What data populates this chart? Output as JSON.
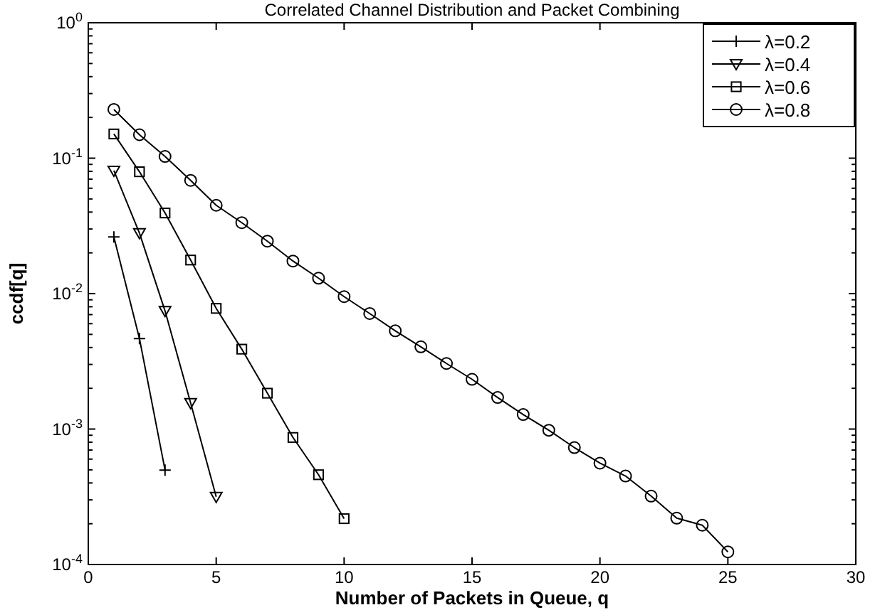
{
  "chart_data": {
    "type": "line",
    "title": "Correlated Channel Distribution and Packet Combining",
    "xlabel": "Number of Packets in Queue, q",
    "ylabel": "ccdf[q]",
    "log": "y",
    "xlim": [
      0,
      30
    ],
    "ylim": [
      0.0001,
      1
    ],
    "xticks": [
      0,
      5,
      10,
      15,
      20,
      25,
      30
    ],
    "yticks": [
      {
        "value": 1,
        "label": "10$^{0}$"
      },
      {
        "value": 0.1,
        "label": "10$^{-1}$"
      },
      {
        "value": 0.01,
        "label": "10$^{-2}$"
      },
      {
        "value": 0.001,
        "label": "10$^{-3}$"
      },
      {
        "value": 0.0001,
        "label": "10$^{-4}$"
      }
    ],
    "grid": false,
    "legend": "top right",
    "line_style": "solid",
    "series": [
      {
        "name": "λ=0.2",
        "color": "#000000",
        "marker": "cross",
        "x": [
          1,
          2,
          3
        ],
        "values": [
          0.0262,
          0.00466,
          0.000498
        ]
      },
      {
        "name": "λ=0.4",
        "color": "#000000",
        "marker": "triangle",
        "x": [
          1,
          2,
          3,
          4,
          5
        ],
        "values": [
          0.081,
          0.028,
          0.00745,
          0.00156,
          0.000316
        ]
      },
      {
        "name": "λ=0.6",
        "color": "#000000",
        "marker": "square",
        "x": [
          1,
          2,
          3,
          4,
          5,
          6,
          7,
          8,
          9,
          10
        ],
        "values": [
          0.151,
          0.0794,
          0.0394,
          0.0177,
          0.00778,
          0.00389,
          0.00184,
          0.000867,
          0.00046,
          0.000218
        ]
      },
      {
        "name": "λ=0.8",
        "color": "#000000",
        "marker": "circle",
        "x": [
          1,
          2,
          3,
          4,
          5,
          6,
          7,
          8,
          9,
          10,
          11,
          12,
          13,
          14,
          15,
          16,
          17,
          18,
          19,
          20,
          21,
          22,
          23,
          24,
          25
        ],
        "values": [
          0.229,
          0.149,
          0.103,
          0.0686,
          0.0449,
          0.0334,
          0.0244,
          0.0174,
          0.013,
          0.0095,
          0.00713,
          0.00531,
          0.00405,
          0.00305,
          0.00233,
          0.00171,
          0.00128,
          0.00098,
          0.00073,
          0.00056,
          0.00045,
          0.00032,
          0.00022,
          0.000195,
          0.000124
        ]
      }
    ]
  }
}
